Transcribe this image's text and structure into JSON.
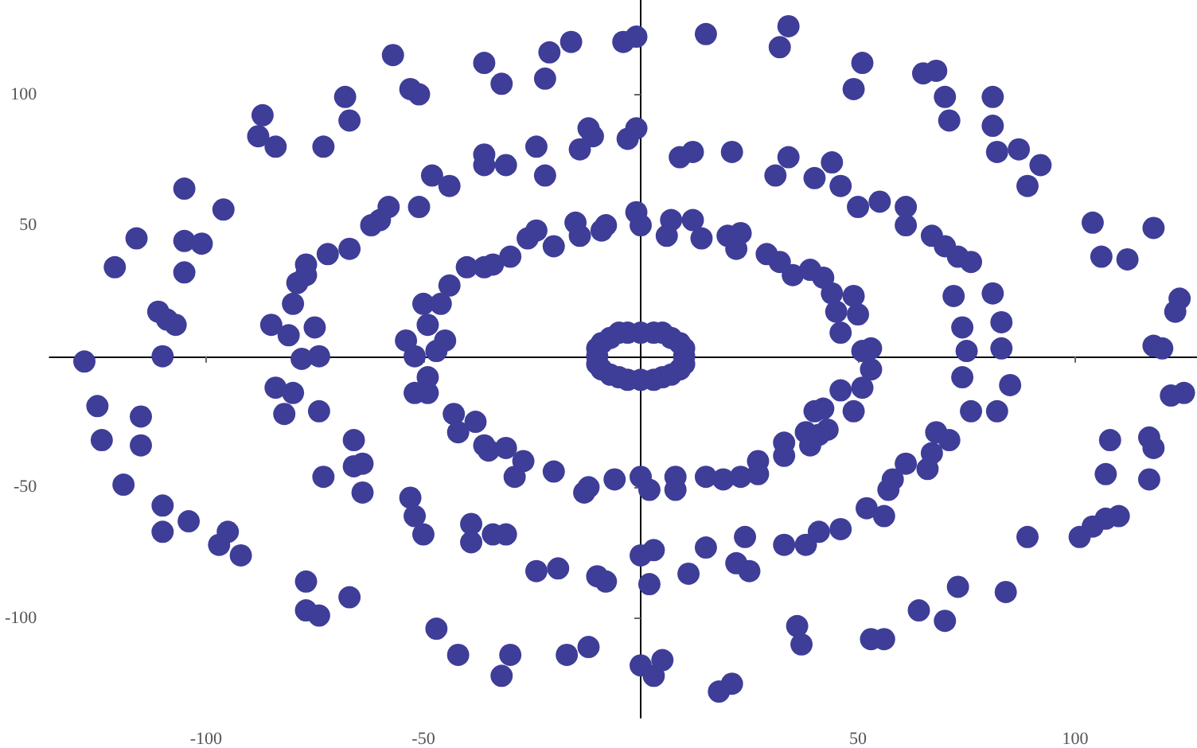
{
  "chart_data": {
    "type": "scatter",
    "marker": "circle",
    "grid": false,
    "color": "#3e3d98",
    "xlim": [
      -136,
      128
    ],
    "ylim": [
      -138,
      136
    ],
    "xticks": [
      -100,
      -50,
      50,
      100
    ],
    "yticks": [
      -100,
      -50,
      50,
      100
    ],
    "x": [
      -57,
      -53,
      -51,
      -68,
      -67,
      -87,
      -88,
      -84,
      -73,
      -48,
      -105,
      -96,
      -51,
      -58,
      -60,
      -62,
      -116,
      -105,
      -101,
      -67,
      -72,
      -121,
      -77,
      -77,
      -79,
      -105,
      -80,
      -111,
      -109,
      -107,
      -85,
      -81,
      -75,
      -50,
      -49,
      -54,
      -128,
      -110,
      -78,
      -74,
      -52,
      -36,
      -32,
      -21,
      -22,
      -16,
      -4,
      -1,
      15,
      34,
      32,
      -36,
      -36,
      -31,
      -24,
      -22,
      -14,
      -12,
      -11,
      -3,
      -1,
      9,
      12,
      21,
      34,
      31,
      40,
      -44,
      -40,
      -36,
      -34,
      -30,
      -26,
      -24,
      -20,
      -15,
      -14,
      -9,
      -8,
      -1,
      0,
      7,
      6,
      12,
      14,
      20,
      23,
      22,
      29,
      32,
      35,
      39,
      -44,
      -46,
      -45,
      -47,
      51,
      49,
      65,
      68,
      70,
      71,
      81,
      81,
      82,
      87,
      92,
      89,
      44,
      46,
      50,
      55,
      61,
      61,
      67,
      70,
      73,
      76,
      104,
      106,
      112,
      118,
      124,
      123,
      118,
      120,
      42,
      44,
      49,
      45,
      50,
      46,
      72,
      81,
      74,
      83,
      75,
      83,
      51,
      53,
      -125,
      -115,
      -124,
      -115,
      -119,
      -110,
      -110,
      -104,
      -95,
      -97,
      -92,
      -77,
      -77,
      -74,
      -67,
      -84,
      -80,
      -82,
      -74,
      -66,
      -66,
      -64,
      -73,
      -64,
      -53,
      -52,
      -50,
      -52,
      -49,
      -49,
      -47,
      -42,
      -30,
      -32,
      -17,
      -12,
      0,
      3,
      5,
      18,
      21,
      36,
      37,
      -39,
      -39,
      -34,
      -31,
      -24,
      -19,
      -10,
      -8,
      0,
      3,
      2,
      11,
      15,
      22,
      25,
      24,
      33,
      38,
      41,
      46,
      -43,
      -38,
      -42,
      -36,
      -35,
      -31,
      -27,
      -29,
      -20,
      -13,
      -12,
      -6,
      0,
      2,
      8,
      8,
      15,
      19,
      23,
      27,
      27,
      33,
      33,
      38,
      39,
      40,
      53,
      51,
      46,
      49,
      42,
      43,
      41,
      74,
      85,
      76,
      82,
      68,
      71,
      67,
      66,
      61,
      58,
      57,
      52,
      56,
      108,
      107,
      117,
      118,
      117,
      122,
      125,
      110,
      107,
      104,
      101,
      89,
      73,
      84,
      64,
      70,
      53,
      56,
      10,
      10,
      9,
      7,
      5,
      3,
      0,
      -3,
      -5,
      -7,
      -9,
      -10,
      -10,
      -10,
      -9,
      -7,
      -5,
      -3,
      0,
      3,
      5,
      7,
      9,
      10
    ],
    "values": [
      115,
      102,
      100,
      99,
      90,
      92,
      84,
      80,
      80,
      69,
      64,
      56,
      57,
      57,
      52,
      50,
      45,
      44,
      43,
      41,
      39,
      34,
      35,
      31,
      28,
      32,
      20,
      17,
      14,
      12,
      12,
      8,
      11,
      20,
      12,
      6,
      -2,
      0,
      -1,
      0,
      0,
      112,
      104,
      116,
      106,
      120,
      120,
      122,
      123,
      126,
      118,
      77,
      73,
      73,
      80,
      69,
      79,
      87,
      84,
      83,
      87,
      76,
      78,
      78,
      76,
      69,
      68,
      65,
      34,
      34,
      35,
      38,
      45,
      48,
      42,
      51,
      46,
      48,
      50,
      55,
      50,
      52,
      46,
      52,
      45,
      46,
      47,
      41,
      39,
      36,
      31,
      33,
      27,
      20,
      6,
      2,
      112,
      102,
      108,
      109,
      99,
      90,
      99,
      88,
      78,
      79,
      73,
      65,
      74,
      65,
      57,
      59,
      57,
      50,
      46,
      42,
      38,
      36,
      51,
      38,
      37,
      49,
      22,
      17,
      4,
      3,
      30,
      24,
      23,
      17,
      16,
      9,
      23,
      24,
      11,
      13,
      2,
      3,
      2,
      3,
      -19,
      -23,
      -32,
      -34,
      -49,
      -57,
      -67,
      -63,
      -67,
      -72,
      -76,
      -86,
      -97,
      -99,
      -92,
      -12,
      -14,
      -22,
      -21,
      -32,
      -42,
      -41,
      -46,
      -52,
      -54,
      -61,
      -68,
      -14,
      -14,
      -8,
      -104,
      -114,
      -114,
      -122,
      -114,
      -111,
      -118,
      -122,
      -116,
      -128,
      -125,
      -103,
      -110,
      -64,
      -71,
      -68,
      -68,
      -82,
      -81,
      -84,
      -86,
      -76,
      -74,
      -87,
      -83,
      -73,
      -79,
      -82,
      -69,
      -72,
      -72,
      -67,
      -66,
      -22,
      -25,
      -29,
      -34,
      -36,
      -35,
      -40,
      -46,
      -44,
      -52,
      -50,
      -47,
      -46,
      -51,
      -46,
      -51,
      -46,
      -47,
      -46,
      -40,
      -45,
      -33,
      -38,
      -29,
      -34,
      -21,
      -5,
      -12,
      -13,
      -21,
      -20,
      -28,
      -30,
      -8,
      -11,
      -21,
      -21,
      -29,
      -32,
      -37,
      -43,
      -41,
      -47,
      -51,
      -58,
      -61,
      -32,
      -45,
      -31,
      -35,
      -47,
      -15,
      -14,
      -61,
      -62,
      -65,
      -69,
      -69,
      -88,
      -90,
      -97,
      -101,
      -108,
      -108,
      0,
      3,
      5,
      7,
      9,
      9,
      9,
      9,
      9,
      7,
      5,
      3,
      0,
      -3,
      -5,
      -7,
      -8,
      -9,
      -9,
      -9,
      -8,
      -7,
      -5,
      -3
    ]
  }
}
